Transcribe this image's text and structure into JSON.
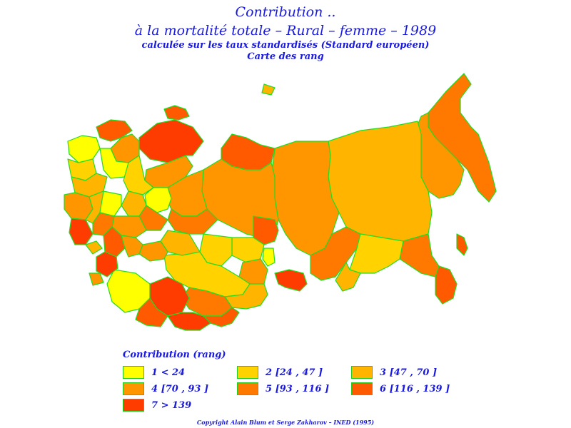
{
  "titles": {
    "line1": "Contribution ..",
    "line2": "à la mortalité totale  –  Rural  –  femme  –  1989",
    "line3": "calculée sur les taux standardisés (Standard européen)",
    "line4": "Carte des rang"
  },
  "legend": {
    "title": "Contribution  (rang)",
    "items": [
      {
        "label": "1  <  24",
        "color": "#ffff00"
      },
      {
        "label": "2  [24 ,  47 ]",
        "color": "#ffd200"
      },
      {
        "label": "3  [47 ,  70 ]",
        "color": "#ffb400"
      },
      {
        "label": "4  [70 ,  93 ]",
        "color": "#ff9600"
      },
      {
        "label": "5  [93 ,  116 ]",
        "color": "#ff7800"
      },
      {
        "label": "6  [116 ,  139 ]",
        "color": "#ff5a00"
      },
      {
        "label": "7  >  139",
        "color": "#ff3c00"
      }
    ]
  },
  "map": {
    "border_color": "#22dd22"
  },
  "copyright": "Copyright  Alain  Blum  et  Serge  Zakharov  –  INED  (1995)"
}
